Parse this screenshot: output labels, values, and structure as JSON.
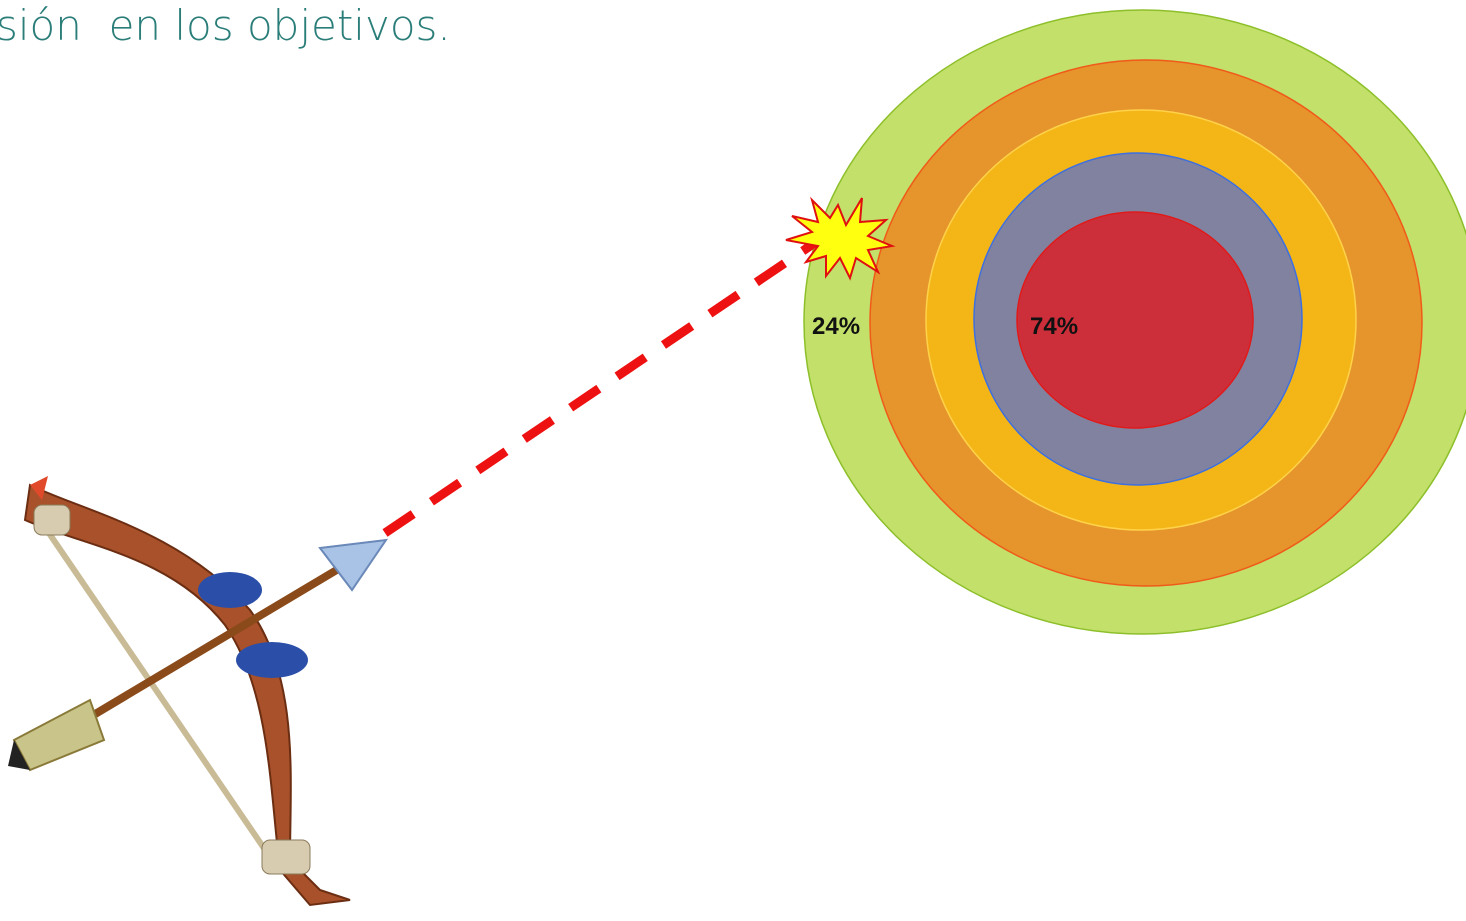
{
  "header": {
    "title": "sión  en los objetivos."
  },
  "target": {
    "labels": [
      "24%",
      "74%"
    ]
  }
}
